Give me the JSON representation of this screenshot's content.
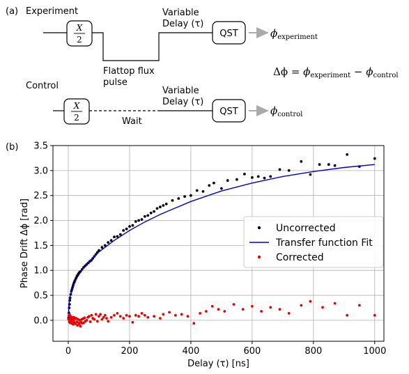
{
  "panel_a": {
    "label": "(a)",
    "experiment_label": "Experiment",
    "control_label": "Control",
    "gate_num": "X",
    "gate_den": "2",
    "variable_delay_line1": "Variable",
    "variable_delay_line2": "Delay (τ)",
    "qst": "QST",
    "flux_pulse_line1": "Flattop flux",
    "flux_pulse_line2": "pulse",
    "wait": "Wait",
    "phi": "ϕ",
    "phi_experiment_sub": "experiment",
    "phi_control_sub": "control",
    "equation_lhs": "Δϕ",
    "equation_eq": " = ",
    "equation_minus": " − ",
    "colors": {
      "arrow": "#aaaaaa",
      "line": "#000000"
    }
  },
  "panel_b": {
    "label": "(b)"
  },
  "chart_data": {
    "type": "scatter",
    "xlabel": "Delay (τ) [ns]",
    "ylabel": "Phase Drift Δϕ [rad]",
    "xlim": [
      -50,
      1030
    ],
    "ylim": [
      -0.42,
      3.5
    ],
    "xticks": [
      0,
      200,
      400,
      600,
      800,
      1000
    ],
    "yticks": [
      0.0,
      0.5,
      1.0,
      1.5,
      2.0,
      2.5,
      3.0,
      3.5
    ],
    "grid": true,
    "legend_position": "center-right",
    "series": [
      {
        "name": "Uncorrected",
        "kind": "points",
        "color": "#000000",
        "x": [
          1,
          2,
          3,
          4,
          5,
          6,
          8,
          10,
          12,
          14,
          16,
          18,
          20,
          22,
          25,
          28,
          30,
          33,
          36,
          40,
          45,
          50,
          55,
          60,
          65,
          70,
          75,
          80,
          85,
          90,
          95,
          100,
          110,
          120,
          130,
          140,
          150,
          160,
          170,
          180,
          190,
          200,
          210,
          220,
          230,
          240,
          250,
          260,
          270,
          280,
          290,
          300,
          310,
          320,
          340,
          360,
          380,
          400,
          420,
          440,
          460,
          475,
          500,
          520,
          550,
          575,
          600,
          620,
          640,
          660,
          690,
          720,
          760,
          790,
          820,
          850,
          870,
          910,
          950,
          1000
        ],
        "y": [
          0.05,
          0.15,
          0.25,
          0.32,
          0.4,
          0.45,
          0.52,
          0.58,
          0.62,
          0.66,
          0.7,
          0.74,
          0.77,
          0.8,
          0.84,
          0.88,
          0.9,
          0.93,
          0.96,
          0.98,
          1.02,
          1.06,
          1.09,
          1.12,
          1.15,
          1.18,
          1.2,
          1.24,
          1.28,
          1.32,
          1.36,
          1.4,
          1.46,
          1.5,
          1.56,
          1.6,
          1.67,
          1.68,
          1.72,
          1.8,
          1.83,
          1.88,
          1.9,
          1.98,
          2.0,
          2.02,
          2.08,
          2.1,
          2.15,
          2.18,
          2.24,
          2.27,
          2.3,
          2.33,
          2.4,
          2.44,
          2.48,
          2.5,
          2.6,
          2.58,
          2.7,
          2.75,
          2.64,
          2.8,
          2.82,
          2.93,
          2.86,
          2.88,
          2.85,
          2.88,
          3.02,
          3.0,
          3.18,
          2.92,
          3.12,
          3.12,
          3.1,
          3.32,
          3.08,
          3.24
        ]
      },
      {
        "name": "Transfer function Fit",
        "kind": "line",
        "color": "#0000cc",
        "x": [
          0,
          2,
          5,
          10,
          20,
          30,
          50,
          75,
          100,
          150,
          200,
          250,
          300,
          400,
          500,
          600,
          700,
          800,
          900,
          1000
        ],
        "y": [
          0.0,
          0.3,
          0.45,
          0.58,
          0.75,
          0.87,
          1.05,
          1.22,
          1.37,
          1.6,
          1.8,
          1.97,
          2.12,
          2.38,
          2.59,
          2.75,
          2.88,
          2.98,
          3.06,
          3.12
        ]
      },
      {
        "name": "Corrected",
        "kind": "points",
        "color": "#ee0000",
        "x": [
          1,
          2,
          3,
          4,
          5,
          6,
          7,
          8,
          9,
          10,
          11,
          12,
          13,
          14,
          15,
          16,
          17,
          18,
          19,
          20,
          22,
          24,
          26,
          28,
          30,
          32,
          34,
          36,
          38,
          40,
          42,
          44,
          46,
          48,
          50,
          53,
          56,
          60,
          64,
          68,
          72,
          76,
          80,
          85,
          90,
          95,
          100,
          105,
          110,
          115,
          120,
          125,
          130,
          140,
          150,
          160,
          170,
          180,
          190,
          200,
          210,
          220,
          230,
          240,
          250,
          260,
          280,
          300,
          310,
          330,
          350,
          370,
          390,
          410,
          430,
          450,
          470,
          490,
          510,
          540,
          570,
          600,
          630,
          660,
          690,
          720,
          760,
          790,
          830,
          870,
          910,
          950,
          1000
        ],
        "y": [
          0.02,
          0.1,
          -0.03,
          0.12,
          0.05,
          -0.05,
          0.08,
          0.02,
          -0.02,
          0.05,
          -0.06,
          0.03,
          0.06,
          -0.04,
          0.02,
          -0.08,
          0.04,
          -0.02,
          0.06,
          -0.05,
          0.03,
          -0.07,
          0.04,
          -0.03,
          -0.1,
          0.02,
          -0.05,
          -0.08,
          0.0,
          -0.12,
          -0.04,
          0.02,
          -0.06,
          0.03,
          -0.05,
          0.05,
          -0.02,
          0.0,
          0.06,
          0.08,
          -0.03,
          0.1,
          0.04,
          0.02,
          0.12,
          -0.02,
          0.08,
          0.12,
          0.02,
          0.06,
          0.1,
          0.04,
          -0.02,
          0.06,
          0.1,
          0.14,
          0.08,
          0.04,
          0.1,
          0.08,
          -0.04,
          0.1,
          0.08,
          0.14,
          0.1,
          0.06,
          0.08,
          0.04,
          0.12,
          0.16,
          0.1,
          0.12,
          0.08,
          -0.06,
          0.14,
          0.18,
          0.28,
          0.22,
          0.18,
          0.32,
          0.22,
          0.28,
          0.18,
          0.26,
          0.22,
          0.14,
          0.3,
          0.38,
          0.26,
          0.34,
          0.1,
          0.3,
          0.1
        ]
      }
    ]
  }
}
